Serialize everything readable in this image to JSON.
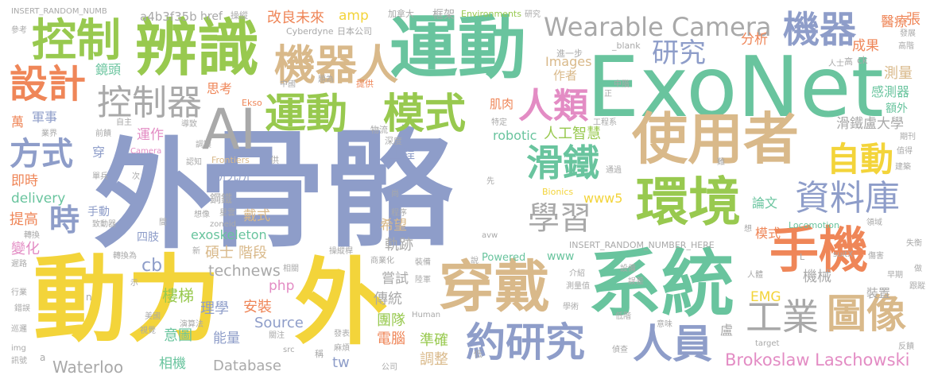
{
  "colors": {
    "blue": "#8e9dc9",
    "green": "#98c94f",
    "yellow": "#f3d43a",
    "tan": "#d9b98a",
    "orange": "#ef8658",
    "teal": "#69c49e",
    "gray": "#a9a9a9",
    "pink": "#e38cc4"
  },
  "words": [
    {
      "text": "骨骼",
      "color": "blue"
    },
    {
      "text": "外",
      "color": "blue"
    },
    {
      "text": "ExoNet",
      "color": "teal"
    },
    {
      "text": "動力",
      "color": "yellow"
    },
    {
      "text": "外",
      "color": "yellow"
    },
    {
      "text": "系統",
      "color": "teal"
    },
    {
      "text": "使用者",
      "color": "tan"
    },
    {
      "text": "運動",
      "color": "teal"
    },
    {
      "text": "辨識",
      "color": "green"
    },
    {
      "text": "穿戴",
      "color": "tan"
    },
    {
      "text": "環境",
      "color": "green"
    },
    {
      "text": "手機",
      "color": "orange"
    },
    {
      "text": "AI",
      "color": "gray"
    },
    {
      "text": "控制",
      "color": "green"
    },
    {
      "text": "運動",
      "color": "green"
    },
    {
      "text": "模式",
      "color": "green"
    },
    {
      "text": "機器人",
      "color": "tan"
    },
    {
      "text": "Wearable Camera",
      "color": "gray"
    },
    {
      "text": "機器",
      "color": "blue"
    },
    {
      "text": "研究",
      "color": "blue"
    },
    {
      "text": "設計",
      "color": "orange"
    },
    {
      "text": "控制器",
      "color": "gray"
    },
    {
      "text": "人類",
      "color": "pink"
    },
    {
      "text": "滑鐵",
      "color": "teal"
    },
    {
      "text": "自動",
      "color": "yellow"
    },
    {
      "text": "資料庫",
      "color": "blue"
    },
    {
      "text": "學習",
      "color": "gray"
    },
    {
      "text": "約研究",
      "color": "blue"
    },
    {
      "text": "人員",
      "color": "blue"
    },
    {
      "text": "工業",
      "color": "gray"
    },
    {
      "text": "圖像",
      "color": "tan"
    },
    {
      "text": "方式",
      "color": "blue"
    },
    {
      "text": "時",
      "color": "blue"
    },
    {
      "text": "Brokoslaw Laschowski",
      "color": "pink"
    },
    {
      "text": "Waterloo",
      "color": "gray"
    },
    {
      "text": "Database",
      "color": "gray"
    },
    {
      "text": "exoskeleton",
      "color": "teal"
    },
    {
      "text": "technews",
      "color": "gray"
    },
    {
      "text": "robotic",
      "color": "teal"
    },
    {
      "text": "人工智慧",
      "color": "green"
    },
    {
      "text": "滑鐵盧大學",
      "color": "gray"
    },
    {
      "text": "Images",
      "color": "tan"
    },
    {
      "text": "delivery",
      "color": "teal"
    },
    {
      "text": "即時",
      "color": "orange"
    },
    {
      "text": "提高",
      "color": "orange"
    },
    {
      "text": "軌跡",
      "color": "gray"
    },
    {
      "text": "希望",
      "color": "tan"
    },
    {
      "text": "階段",
      "color": "tan"
    },
    {
      "text": "碩士",
      "color": "tan"
    },
    {
      "text": "戴式",
      "color": "tan"
    },
    {
      "text": "研究所",
      "color": "blue"
    },
    {
      "text": "手動",
      "color": "blue"
    },
    {
      "text": "鏡頭",
      "color": "teal"
    },
    {
      "text": "軍事",
      "color": "blue"
    },
    {
      "text": "萬",
      "color": "orange"
    },
    {
      "text": "肌肉",
      "color": "orange"
    },
    {
      "text": "作者",
      "color": "tan"
    },
    {
      "text": "分析",
      "color": "orange"
    },
    {
      "text": "成果",
      "color": "orange"
    },
    {
      "text": "醫療",
      "color": "orange"
    },
    {
      "text": "測量",
      "color": "tan"
    },
    {
      "text": "感測器",
      "color": "teal"
    },
    {
      "text": "額外",
      "color": "teal"
    },
    {
      "text": "改良未來",
      "color": "orange"
    },
    {
      "text": "amp",
      "color": "yellow"
    },
    {
      "text": "a4b3f35b",
      "color": "gray"
    },
    {
      "text": "href",
      "color": "gray"
    },
    {
      "text": "INSERT_RANDOM_NUMB",
      "color": "gray"
    },
    {
      "text": "INSERT_RANDOM_NUMBER_HERE",
      "color": "gray"
    },
    {
      "text": "www5",
      "color": "yellow"
    },
    {
      "text": "www",
      "color": "teal"
    },
    {
      "text": "Powered",
      "color": "teal"
    },
    {
      "text": "EMG",
      "color": "yellow"
    },
    {
      "text": "Source",
      "color": "blue"
    },
    {
      "text": "php",
      "color": "pink"
    },
    {
      "text": "cb",
      "color": "blue"
    },
    {
      "text": "tw",
      "color": "blue"
    },
    {
      "text": "工程",
      "color": "blue"
    },
    {
      "text": "樓梯",
      "color": "green"
    },
    {
      "text": "理學",
      "color": "blue"
    },
    {
      "text": "安裝",
      "color": "orange"
    },
    {
      "text": "能量",
      "color": "blue"
    },
    {
      "text": "意圖",
      "color": "teal"
    },
    {
      "text": "相機",
      "color": "teal"
    },
    {
      "text": "傳統",
      "color": "gray"
    },
    {
      "text": "嘗試",
      "color": "gray"
    },
    {
      "text": "團隊",
      "color": "green"
    },
    {
      "text": "電腦",
      "color": "orange"
    },
    {
      "text": "準確",
      "color": "green"
    },
    {
      "text": "調整",
      "color": "tan"
    },
    {
      "text": "機械",
      "color": "gray"
    },
    {
      "text": "裝置",
      "color": "gray"
    },
    {
      "text": "模式",
      "color": "orange"
    },
    {
      "text": "論文",
      "color": "teal"
    },
    {
      "text": "變化",
      "color": "pink"
    },
    {
      "text": "運作",
      "color": "pink"
    },
    {
      "text": "思考",
      "color": "orange"
    },
    {
      "text": "張",
      "color": "orange"
    },
    {
      "text": "盧",
      "color": "gray"
    },
    {
      "text": "穿",
      "color": "blue"
    },
    {
      "text": "四肢",
      "color": "blue"
    },
    {
      "text": "鋼鐵",
      "color": "gray"
    },
    {
      "text": "Environments",
      "color": "green"
    },
    {
      "text": "Cyberdyne",
      "color": "gray"
    },
    {
      "text": "日本公司",
      "color": "gray"
    },
    {
      "text": "操縱",
      "color": "gray"
    },
    {
      "text": "加拿大",
      "color": "gray"
    },
    {
      "text": "框架",
      "color": "gray"
    },
    {
      "text": "參考",
      "color": "gray"
    },
    {
      "text": "發展",
      "color": "gray"
    },
    {
      "text": "研究",
      "color": "gray"
    },
    {
      "text": "_blank",
      "color": "gray"
    },
    {
      "text": "進一步",
      "color": "gray"
    },
    {
      "text": "人士",
      "color": "gray"
    },
    {
      "text": "高",
      "color": "gray"
    },
    {
      "text": "ck",
      "color": "gray"
    },
    {
      "text": "中國",
      "color": "gray"
    },
    {
      "text": "題為",
      "color": "gray"
    },
    {
      "text": "提供",
      "color": "orange"
    },
    {
      "text": "Ekso",
      "color": "orange"
    },
    {
      "text": "業界",
      "color": "gray"
    },
    {
      "text": "自主",
      "color": "gray"
    },
    {
      "text": "導致",
      "color": "gray"
    },
    {
      "text": "特定",
      "color": "gray"
    },
    {
      "text": "工程系",
      "color": "gray"
    },
    {
      "text": "物流",
      "color": "gray"
    },
    {
      "text": "深度",
      "color": "gray"
    },
    {
      "text": "期刊",
      "color": "gray"
    },
    {
      "text": "值得",
      "color": "gray"
    },
    {
      "text": "建築",
      "color": "gray"
    },
    {
      "text": "Camera",
      "color": "pink"
    },
    {
      "text": "調製",
      "color": "gray"
    },
    {
      "text": "認知",
      "color": "gray"
    },
    {
      "text": "Frontiers",
      "color": "tan"
    },
    {
      "text": "單兵",
      "color": "gray"
    },
    {
      "text": "次",
      "color": "gray"
    },
    {
      "text": "Bionics",
      "color": "yellow"
    },
    {
      "text": "通過",
      "color": "gray"
    },
    {
      "text": "難",
      "color": "gray"
    },
    {
      "text": "轉換",
      "color": "gray"
    },
    {
      "text": "致動器",
      "color": "gray"
    },
    {
      "text": "間",
      "color": "gray"
    },
    {
      "text": "想像",
      "color": "gray"
    },
    {
      "text": "星雲",
      "color": "gray"
    },
    {
      "text": "zoneid",
      "color": "gray"
    },
    {
      "text": "程序",
      "color": "gray"
    },
    {
      "text": "陸軍",
      "color": "gray"
    },
    {
      "text": "尚",
      "color": "gray"
    },
    {
      "text": "avw",
      "color": "gray"
    },
    {
      "text": "Locomotion",
      "color": "teal"
    },
    {
      "text": "領域",
      "color": "gray"
    },
    {
      "text": "操縱桿",
      "color": "gray"
    },
    {
      "text": "遲路",
      "color": "gray"
    },
    {
      "text": "轉換為",
      "color": "gray"
    },
    {
      "text": "新",
      "color": "gray"
    },
    {
      "text": "商業化",
      "color": "gray"
    },
    {
      "text": "裝備",
      "color": "gray"
    },
    {
      "text": "說",
      "color": "gray"
    },
    {
      "text": "介紹",
      "color": "gray"
    },
    {
      "text": "設備",
      "color": "gray"
    },
    {
      "text": "傷害",
      "color": "gray"
    },
    {
      "text": "suitX",
      "color": "gray"
    },
    {
      "text": "失衡",
      "color": "gray"
    },
    {
      "text": "行業",
      "color": "gray"
    },
    {
      "text": "相關",
      "color": "gray"
    },
    {
      "text": "示",
      "color": "gray"
    },
    {
      "text": "測量值",
      "color": "gray"
    },
    {
      "text": "誤差",
      "color": "gray"
    },
    {
      "text": "人體",
      "color": "gray"
    },
    {
      "text": "錯誤",
      "color": "gray"
    },
    {
      "text": "美國",
      "color": "gray"
    },
    {
      "text": "Human",
      "color": "gray"
    },
    {
      "text": "學術",
      "color": "gray"
    },
    {
      "text": "早期",
      "color": "gray"
    },
    {
      "text": "跟蹤",
      "color": "gray"
    },
    {
      "text": "巡邏",
      "color": "gray"
    },
    {
      "text": "視覺",
      "color": "gray"
    },
    {
      "text": "演算法",
      "color": "gray"
    },
    {
      "text": "發表",
      "color": "gray"
    },
    {
      "text": "低階",
      "color": "gray"
    },
    {
      "text": "意味",
      "color": "gray"
    },
    {
      "text": "反饋",
      "color": "gray"
    },
    {
      "text": "img",
      "color": "gray"
    },
    {
      "text": "關注",
      "color": "gray"
    },
    {
      "text": "src",
      "color": "gray"
    },
    {
      "text": "稱",
      "color": "gray"
    },
    {
      "text": "麻煩",
      "color": "gray"
    },
    {
      "text": "偵查",
      "color": "gray"
    },
    {
      "text": "target",
      "color": "gray"
    },
    {
      "text": "訊號",
      "color": "gray"
    },
    {
      "text": "公司",
      "color": "gray"
    },
    {
      "text": "低",
      "color": "gray"
    },
    {
      "text": "正",
      "color": "gray"
    },
    {
      "text": "前饋",
      "color": "gray"
    },
    {
      "text": "中階",
      "color": "gray"
    },
    {
      "text": "先",
      "color": "gray"
    },
    {
      "text": "做",
      "color": "gray"
    },
    {
      "text": "高階",
      "color": "gray"
    },
    {
      "text": "供",
      "color": "gray"
    },
    {
      "text": "a",
      "color": "gray"
    },
    {
      "text": "n",
      "color": "gray"
    },
    {
      "text": "L",
      "color": "gray"
    },
    {
      "text": "想",
      "color": "gray"
    }
  ]
}
